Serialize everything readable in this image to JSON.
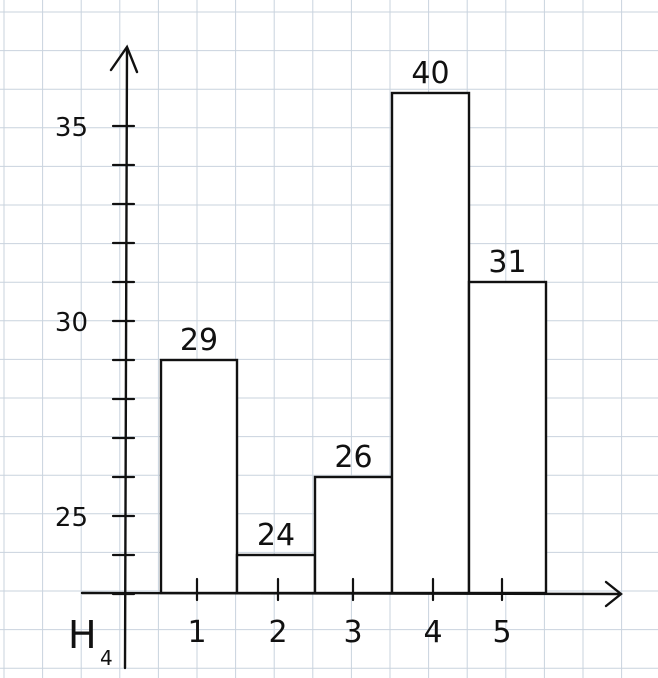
{
  "chart_data": {
    "type": "bar",
    "categories": [
      "1",
      "2",
      "3",
      "4",
      "5"
    ],
    "values": [
      29,
      24,
      26,
      40,
      31
    ],
    "data_labels": [
      "29",
      "24",
      "26",
      "40",
      "31"
    ],
    "y_ticks": [
      "25",
      "30",
      "35"
    ],
    "y_axis_name": "H",
    "y_axis_name_subscript": "4",
    "title": "",
    "xlabel": "",
    "ylabel": "H4",
    "ylim": [
      22.5,
      37.5
    ],
    "note": "y-axis is drawn truncated; the bar for 40 reaches just above the 35 tick",
    "grid": true,
    "legend": "none"
  }
}
